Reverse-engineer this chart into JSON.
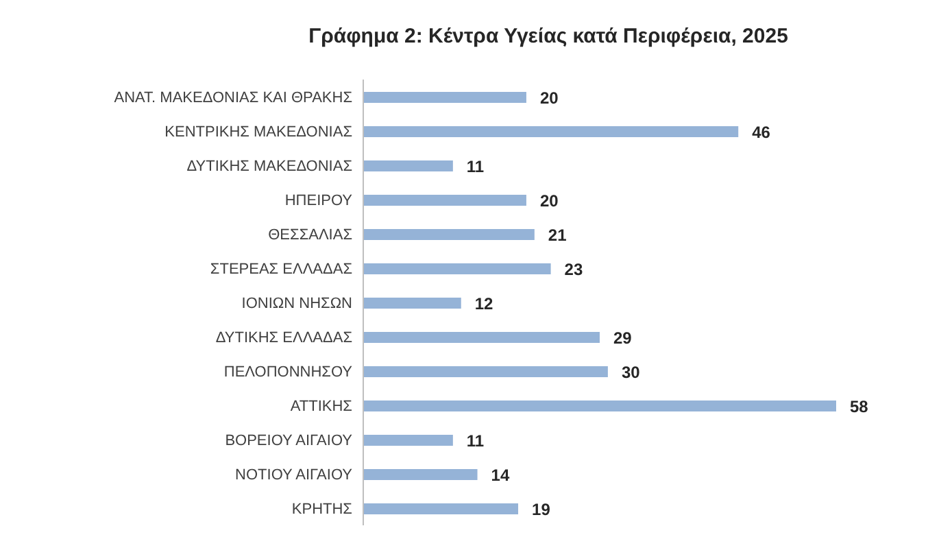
{
  "chart_data": {
    "type": "bar",
    "orientation": "horizontal",
    "title": "Γράφημα 2: Κέντρα Υγείας κατά Περιφέρεια, 2025",
    "categories": [
      "ΑΝΑΤ. ΜΑΚΕΔΟΝΙΑΣ ΚΑΙ ΘΡΑΚΗΣ",
      "ΚΕΝΤΡΙΚΗΣ ΜΑΚΕΔΟΝΙΑΣ",
      "ΔΥΤΙΚΗΣ ΜΑΚΕΔΟΝΙΑΣ",
      "ΗΠΕΙΡΟΥ",
      "ΘΕΣΣΑΛΙΑΣ",
      "ΣΤΕΡΕΑΣ ΕΛΛΑΔΑΣ",
      "ΙΟΝΙΩΝ ΝΗΣΩΝ",
      "ΔΥΤΙΚΗΣ ΕΛΛΑΔΑΣ",
      "ΠΕΛΟΠΟΝΝΗΣΟΥ",
      "ΑΤΤΙΚΗΣ",
      "ΒΟΡΕΙΟΥ ΑΙΓΑΙΟΥ",
      "ΝΟΤΙΟΥ ΑΙΓΑΙΟΥ",
      "ΚΡΗΤΗΣ"
    ],
    "values": [
      20,
      46,
      11,
      20,
      21,
      23,
      12,
      29,
      30,
      58,
      11,
      14,
      19
    ],
    "color": "#95b3d7",
    "data_labels": true
  }
}
